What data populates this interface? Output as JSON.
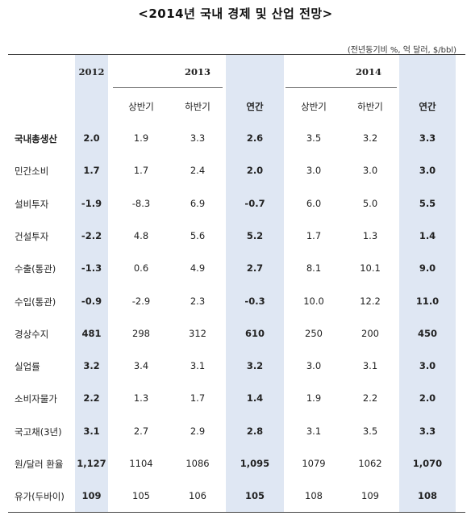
{
  "title": "<2014년 국내 경제 및 산업 전망>",
  "unit": "(전년동기비 %, 억 달러, $/bbl)",
  "header": {
    "year_2012": "2012",
    "year_2013": "2013",
    "year_2014": "2014",
    "sub": [
      "상반기",
      "하반기",
      "연간",
      "상반기",
      "하반기",
      "연간"
    ]
  },
  "rows": [
    {
      "label": "국내총생산",
      "values": [
        "2.0",
        "1.9",
        "3.3",
        "2.6",
        "3.5",
        "3.2",
        "3.3"
      ]
    },
    {
      "label": "민간소비",
      "values": [
        "1.7",
        "1.7",
        "2.4",
        "2.0",
        "3.0",
        "3.0",
        "3.0"
      ]
    },
    {
      "label": "설비투자",
      "values": [
        "-1.9",
        "-8.3",
        "6.9",
        "-0.7",
        "6.0",
        "5.0",
        "5.5"
      ]
    },
    {
      "label": "건설투자",
      "values": [
        "-2.2",
        "4.8",
        "5.6",
        "5.2",
        "1.7",
        "1.3",
        "1.4"
      ]
    },
    {
      "label": "수출(통관)",
      "values": [
        "-1.3",
        "0.6",
        "4.9",
        "2.7",
        "8.1",
        "10.1",
        "9.0"
      ]
    },
    {
      "label": "수입(통관)",
      "values": [
        "-0.9",
        "-2.9",
        "2.3",
        "-0.3",
        "10.0",
        "12.2",
        "11.0"
      ]
    },
    {
      "label": "경상수지",
      "values": [
        "481",
        "298",
        "312",
        "610",
        "250",
        "200",
        "450"
      ]
    },
    {
      "label": "실업률",
      "values": [
        "3.2",
        "3.4",
        "3.1",
        "3.2",
        "3.0",
        "3.1",
        "3.0"
      ]
    },
    {
      "label": "소비자물가",
      "values": [
        "2.2",
        "1.3",
        "1.7",
        "1.4",
        "1.9",
        "2.2",
        "2.0"
      ]
    },
    {
      "label": "국고채(3년)",
      "values": [
        "3.1",
        "2.7",
        "2.9",
        "2.8",
        "3.1",
        "3.5",
        "3.3"
      ]
    },
    {
      "label": "원/달러 환율",
      "values": [
        "1,127",
        "1104",
        "1086",
        "1,095",
        "1079",
        "1062",
        "1,070"
      ]
    },
    {
      "label": "유가(두바이)",
      "values": [
        "109",
        "105",
        "106",
        "105",
        "108",
        "109",
        "108"
      ]
    }
  ]
}
